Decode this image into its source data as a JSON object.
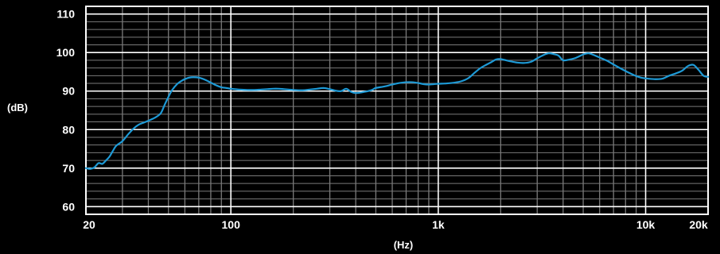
{
  "chart_data": {
    "type": "line",
    "title": "",
    "xlabel": "(Hz)",
    "ylabel": "(dB)",
    "x_scale": "log",
    "xlim": [
      20,
      20000
    ],
    "ylim": [
      58,
      112
    ],
    "x_ticks": [
      {
        "value": 20,
        "label": "20"
      },
      {
        "value": 100,
        "label": "100"
      },
      {
        "value": 1000,
        "label": "1k"
      },
      {
        "value": 10000,
        "label": "10k"
      },
      {
        "value": 20000,
        "label": "20k"
      }
    ],
    "y_ticks": [
      {
        "value": 60,
        "label": "60"
      },
      {
        "value": 70,
        "label": "70"
      },
      {
        "value": 80,
        "label": "80"
      },
      {
        "value": 90,
        "label": "90"
      },
      {
        "value": 100,
        "label": "100"
      },
      {
        "value": 110,
        "label": "110"
      }
    ],
    "grid": true,
    "series": [
      {
        "color": "#1e9ad6",
        "x": [
          20,
          21,
          22,
          23,
          24,
          25,
          26,
          27,
          28,
          30,
          32,
          34,
          36,
          38,
          40,
          42,
          44,
          46,
          48,
          50,
          52,
          55,
          58,
          60,
          63,
          66,
          70,
          73,
          76,
          80,
          85,
          90,
          95,
          100,
          105,
          110,
          120,
          130,
          140,
          150,
          160,
          170,
          180,
          190,
          200,
          220,
          240,
          260,
          280,
          300,
          320,
          340,
          360,
          380,
          400,
          420,
          440,
          460,
          480,
          500,
          550,
          600,
          650,
          700,
          750,
          800,
          850,
          900,
          950,
          1000,
          1100,
          1200,
          1300,
          1400,
          1500,
          1600,
          1700,
          1800,
          1900,
          2000,
          2200,
          2400,
          2600,
          2800,
          3000,
          3200,
          3400,
          3600,
          3800,
          4000,
          4300,
          4600,
          5000,
          5300,
          5600,
          6000,
          6500,
          7000,
          7500,
          8000,
          8500,
          9000,
          9500,
          10000,
          11000,
          12000,
          13000,
          14000,
          15000,
          16000,
          17000,
          18000,
          19000,
          20000
        ],
        "y": [
          70.0,
          69.8,
          70.2,
          71.3,
          71.1,
          72.0,
          73.0,
          74.5,
          75.8,
          77.0,
          78.8,
          80.3,
          81.3,
          81.8,
          82.3,
          82.8,
          83.4,
          84.3,
          86.5,
          88.5,
          90.2,
          91.8,
          92.7,
          93.1,
          93.5,
          93.6,
          93.5,
          93.2,
          92.8,
          92.2,
          91.5,
          91.0,
          90.8,
          90.6,
          90.5,
          90.4,
          90.3,
          90.3,
          90.4,
          90.5,
          90.6,
          90.6,
          90.5,
          90.4,
          90.3,
          90.2,
          90.4,
          90.6,
          90.8,
          90.5,
          90.1,
          90.0,
          90.6,
          89.8,
          89.5,
          89.6,
          89.8,
          90.0,
          90.3,
          90.8,
          91.2,
          91.7,
          92.1,
          92.3,
          92.3,
          92.1,
          91.8,
          91.7,
          91.8,
          91.9,
          92.0,
          92.2,
          92.6,
          93.4,
          94.8,
          96.0,
          96.8,
          97.5,
          98.2,
          98.3,
          97.8,
          97.4,
          97.3,
          97.6,
          98.5,
          99.3,
          99.8,
          99.6,
          99.2,
          98.0,
          98.2,
          98.6,
          99.5,
          99.8,
          99.4,
          98.7,
          97.9,
          96.9,
          96.0,
          95.2,
          94.5,
          93.9,
          93.5,
          93.3,
          93.1,
          93.2,
          94.0,
          94.6,
          95.3,
          96.5,
          96.8,
          95.5,
          94.0,
          93.7
        ]
      }
    ]
  }
}
